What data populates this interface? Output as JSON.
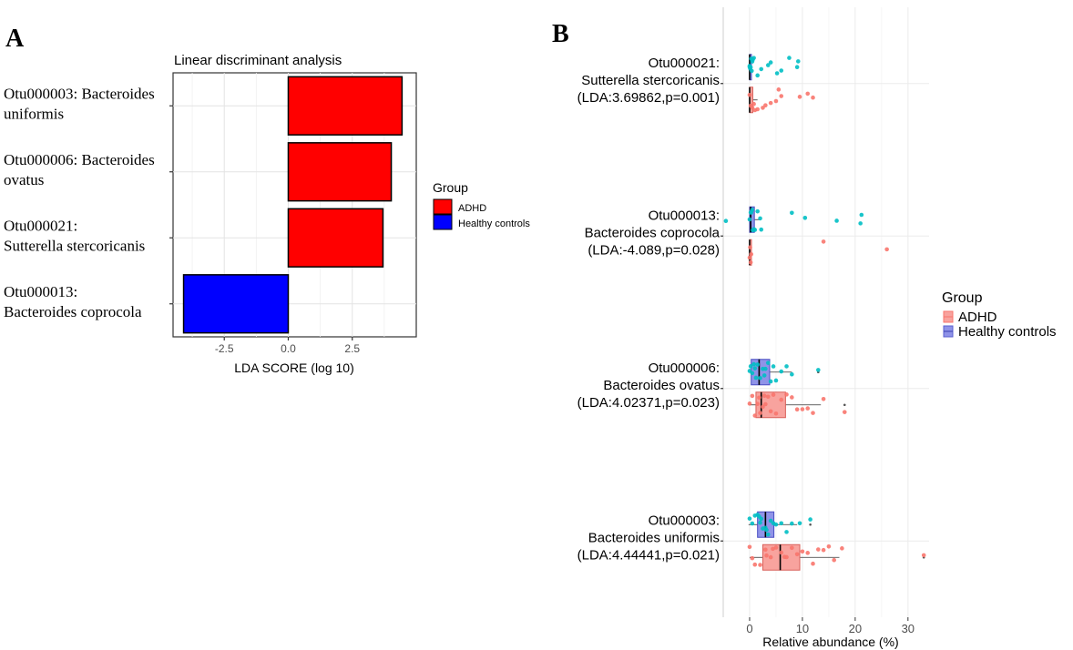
{
  "chart_data": [
    {
      "panel_label": "A",
      "type": "bar",
      "orientation": "horizontal",
      "title": "Linear discriminant analysis",
      "xlabel": "LDA SCORE (log 10)",
      "ylabel": "",
      "xlim": [
        -4.5,
        5.0
      ],
      "x_ticks": [
        "-2.5",
        "0.0",
        "2.5"
      ],
      "categories": [
        "Otu000003: Bacteroides uniformis",
        "Otu000006: Bacteroides ovatus",
        "Otu000021: Sutterella stercoricanis",
        "Otu000013: Bacteroides coprocola"
      ],
      "category_lines": [
        [
          "Otu000003: Bacteroides",
          "uniformis"
        ],
        [
          "Otu000006: Bacteroides",
          "ovatus"
        ],
        [
          "Otu000021:",
          "Sutterella stercoricanis"
        ],
        [
          "Otu000013:",
          "Bacteroides coprocola"
        ]
      ],
      "values": [
        4.44441,
        4.02371,
        3.69862,
        -4.089
      ],
      "bar_groups": [
        "ADHD",
        "ADHD",
        "ADHD",
        "Healthy controls"
      ],
      "legend": {
        "title": "Group",
        "position": "right",
        "entries": [
          {
            "name": "ADHD",
            "color": "#ff0000"
          },
          {
            "name": "Healthy controls",
            "color": "#0000ff"
          }
        ]
      },
      "grid": true
    },
    {
      "panel_label": "B",
      "type": "boxplot",
      "orientation": "horizontal",
      "xlabel": "Relative abundance (%)",
      "ylabel": "",
      "xlim": [
        -5,
        34
      ],
      "x_ticks": [
        "0",
        "10",
        "20",
        "30"
      ],
      "categories": [
        [
          "Otu000021:",
          "Sutterella stercoricanis",
          "(LDA:3.69862,p=0.001)"
        ],
        [
          "Otu000013:",
          "Bacteroides coprocola",
          "(LDA:-4.089,p=0.028)"
        ],
        [
          "Otu000006:",
          "Bacteroides ovatus",
          "(LDA:4.02371,p=0.023)"
        ],
        [
          "Otu000003:",
          "Bacteroides uniformis",
          "(LDA:4.44441,p=0.021)"
        ]
      ],
      "legend": {
        "title": "Group",
        "position": "right",
        "entries": [
          {
            "name": "ADHD",
            "color": "#f8766d"
          },
          {
            "name": "Healthy controls",
            "color": "#00bfc4"
          }
        ]
      },
      "grid": true,
      "series": [
        {
          "name": "Healthy controls",
          "boxes": [
            {
              "min": 0,
              "q1": 0,
              "median": 0,
              "q3": 0.3,
              "max": 0.3,
              "outliers": []
            },
            {
              "min": -0.3,
              "q1": 0,
              "median": 0.2,
              "q3": 0.9,
              "max": 2,
              "outliers": []
            },
            {
              "min": 0,
              "q1": 0.3,
              "median": 1.8,
              "q3": 3.8,
              "max": 8,
              "outliers": [
                13
              ]
            },
            {
              "min": -0.2,
              "q1": 1.5,
              "median": 3,
              "q3": 4.6,
              "max": 9,
              "outliers": [
                11.5
              ]
            }
          ],
          "points": [
            [
              0,
              0.1,
              0.3,
              0.5,
              0,
              0.2,
              0.8,
              1.5,
              2.2,
              3.5,
              4,
              5.2,
              6,
              7.5,
              9,
              9.2,
              0.4,
              0.6
            ],
            [
              -4.5,
              0,
              0.3,
              0.5,
              0.8,
              1,
              1.5,
              2,
              2.2,
              8,
              10.5,
              16.5,
              21,
              21.2,
              0.2,
              0.6
            ],
            [
              0,
              0.2,
              0.5,
              1,
              1.5,
              2,
              2.5,
              3,
              3.5,
              4,
              4.5,
              5,
              6,
              7,
              8,
              13,
              1.2,
              2.8,
              0.8
            ],
            [
              0,
              0.5,
              1,
              1.5,
              2,
              2.5,
              3,
              3.5,
              4,
              4.5,
              5,
              6,
              7,
              8,
              9.5,
              11.5,
              2.2,
              3.2,
              1.8
            ]
          ]
        },
        {
          "name": "ADHD",
          "boxes": [
            {
              "min": 0,
              "q1": 0,
              "median": 0,
              "q3": 0.6,
              "max": 1.5,
              "outliers": []
            },
            {
              "min": 0,
              "q1": 0,
              "median": 0,
              "q3": 0.1,
              "max": 0.2,
              "outliers": []
            },
            {
              "min": 0,
              "q1": 1.2,
              "median": 2.2,
              "q3": 6.8,
              "max": 13.5,
              "outliers": [
                18
              ]
            },
            {
              "min": 0,
              "q1": 2.5,
              "median": 5.8,
              "q3": 9.5,
              "max": 17,
              "outliers": [
                33
              ]
            }
          ],
          "points": [
            [
              0,
              0.2,
              0.5,
              1,
              1.5,
              2.5,
              3,
              4,
              5,
              5.5,
              6,
              9.5,
              11,
              12,
              0.8
            ],
            [
              0,
              0.1,
              0.2,
              14,
              26,
              0.3
            ],
            [
              0,
              0.5,
              1,
              1.5,
              2,
              2.5,
              3,
              3.5,
              4,
              5,
              6,
              7,
              8,
              9,
              10,
              11,
              12,
              14,
              18,
              1.8,
              4.5,
              2.8
            ],
            [
              0,
              0.5,
              1,
              2,
              3,
              4,
              5,
              6,
              7,
              8,
              9,
              10,
              11,
              12,
              13,
              14,
              15,
              16,
              17.5,
              33,
              4.4,
              6.6,
              3.2
            ]
          ]
        }
      ]
    }
  ]
}
